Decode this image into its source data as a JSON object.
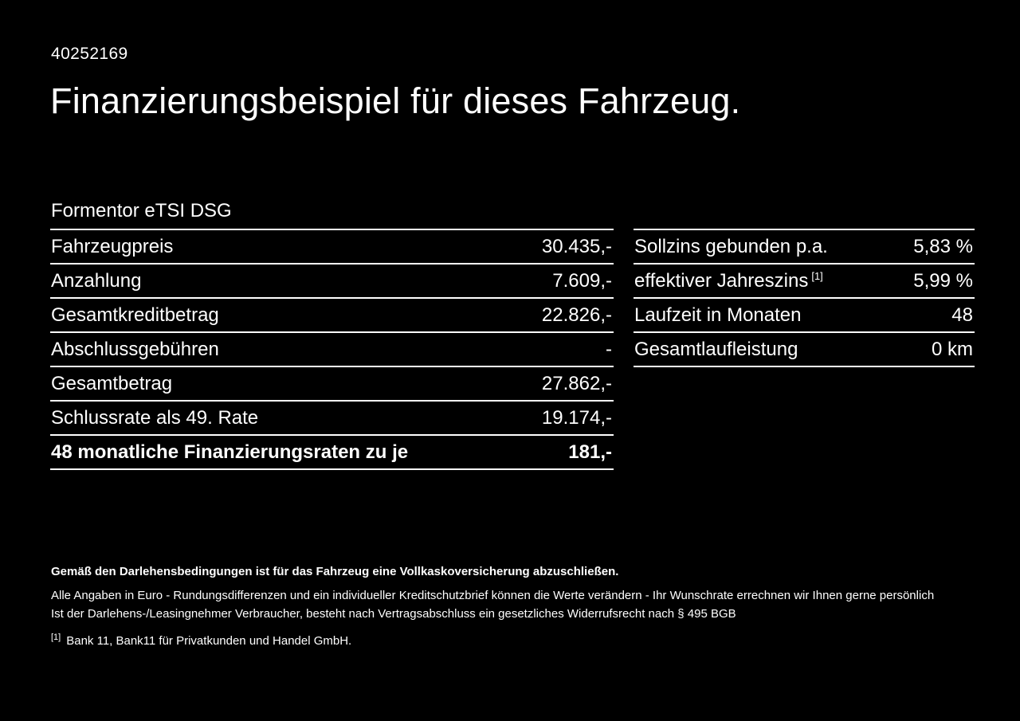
{
  "header": {
    "id": "40252169",
    "title": "Finanzierungsbeispiel für dieses Fahrzeug.",
    "model": "Formentor eTSI DSG"
  },
  "tables": {
    "left": {
      "rows": [
        {
          "label": "Fahrzeugpreis",
          "value": "30.435,-"
        },
        {
          "label": "Anzahlung",
          "value": "7.609,-"
        },
        {
          "label": "Gesamtkreditbetrag",
          "value": "22.826,-"
        },
        {
          "label": "Abschlussgebühren",
          "value": "-"
        },
        {
          "label": "Gesamtbetrag",
          "value": "27.862,-"
        },
        {
          "label": "Schlussrate als 49. Rate",
          "value": "19.174,-"
        },
        {
          "label": "48 monatliche Finanzierungsraten zu je",
          "value": "181,-"
        }
      ]
    },
    "right": {
      "rows": [
        {
          "label": "Sollzins gebunden p.a.",
          "value": "5,83 %"
        },
        {
          "label": "effektiver Jahreszins",
          "footnote_ref": "[1]",
          "value": "5,99 %"
        },
        {
          "label": "Laufzeit in Monaten",
          "value": "48"
        },
        {
          "label": "Gesamtlaufleistung",
          "value": "0 km"
        }
      ]
    }
  },
  "footer": {
    "insurance_note": "Gemäß den Darlehensbedingungen ist für das Fahrzeug eine Vollkaskoversicherung abzuschließen.",
    "disclaimer": "Alle Angaben in Euro - Rundungsdifferenzen und ein individueller Kreditschutzbrief können die Werte verändern - Ihr Wunschrate errechnen wir Ihnen gerne persönlich",
    "withdrawal_note": "Ist der Darlehens-/Leasingnehmer Verbraucher, besteht nach Vertragsabschluss ein gesetzliches Widerrufsrecht nach § 495 BGB",
    "footnote_marker": "[1]",
    "footnote_text": "Bank 11, Bank11 für Privatkunden und Handel GmbH."
  }
}
